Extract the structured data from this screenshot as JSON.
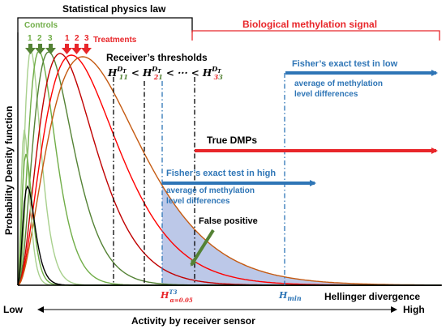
{
  "texts": {
    "section_left": "Statistical physics law",
    "section_right": "Biological methylation signal",
    "controls": "Controls",
    "treatments": "Treatments",
    "control_nums": [
      "1",
      "2",
      "3"
    ],
    "treatment_nums": [
      "1",
      "2",
      "3"
    ],
    "thresholds_title": "Receiver’s thresholds",
    "threshold_formula": "H₁₁ < H₂₁ < ··· < H₃₃",
    "threshold_sup": "DT",
    "fisher_low_1": "Fisher’s exact test in low",
    "fisher_low_2": "average of methylation",
    "fisher_low_3": "level differences",
    "true_dmps": "True DMPs",
    "fisher_high_1": "Fisher’s exact test in high",
    "fisher_high_2": "average of methylation",
    "fisher_high_3": "level differences",
    "false_positive": "False positive",
    "h_alpha": "H",
    "h_alpha_sup": "T3",
    "h_alpha_sub": "α=0.05",
    "h_min": "H",
    "h_min_sub": "min",
    "hellinger": "Hellinger divergence",
    "y_axis": "Probability Density function",
    "low": "Low",
    "high": "High",
    "bottom_axis": "Activity by receiver sensor"
  },
  "colors": {
    "control": [
      "#a8d08d",
      "#70ad47",
      "#548235"
    ],
    "treatment": [
      "#c00000",
      "#ff0000",
      "#c55a11"
    ],
    "extra_curve": "#e06030",
    "green_label": "#70ad47",
    "red": "#e8262a",
    "blue": "#2e75b6",
    "blue_text": "#2e75b6",
    "shade": "#8fa4d8"
  }
}
